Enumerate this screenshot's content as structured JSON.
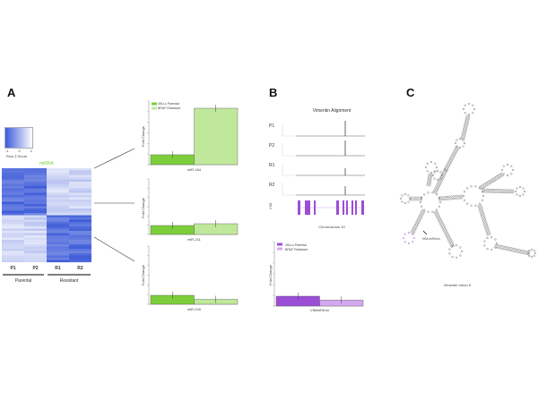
{
  "panels": {
    "a": {
      "letter": "A",
      "heatmap_title": "miRNA",
      "colorbar_label": "Row Z-Score",
      "colorbar_ticks": [
        "-1",
        "0",
        "1"
      ],
      "columns": [
        "P1",
        "P2",
        "R1",
        "R2"
      ],
      "groups": [
        "Parental",
        "Resistant"
      ]
    },
    "b": {
      "letter": "B",
      "alignment_title": "Vimentin Alignment",
      "tracks": [
        "P1",
        "P2",
        "R1",
        "R2"
      ],
      "gene_label": "VIM",
      "xlabel": "Chromosome 10"
    },
    "c": {
      "letter": "C",
      "title": "Vimentin Intron 6",
      "annotation": "VIM-miRtron"
    }
  },
  "colors": {
    "heat_high": "#3d5bd9",
    "heat_low": "#eef0fb",
    "green_dark": "#7ccf3a",
    "green_light": "#bfe89a",
    "purple_dark": "#9b4fd6",
    "purple_light": "#d4a8ef",
    "mirna_label": "#7ccf3a"
  },
  "chart_data": [
    {
      "type": "bar",
      "categories": [
        "miR-184"
      ],
      "ylabel": "Fold Change",
      "legend": "top-left",
      "series": [
        {
          "name": "451Lu Parental",
          "values": [
            1.0
          ]
        },
        {
          "name": "BRAF Resistant",
          "values": [
            5.7
          ]
        }
      ],
      "ylim": [
        0,
        6.5
      ]
    },
    {
      "type": "bar",
      "categories": [
        "miR-211"
      ],
      "ylabel": "Fold Change",
      "series": [
        {
          "values": [
            1.0
          ]
        },
        {
          "values": [
            1.2
          ]
        }
      ],
      "ylim": [
        0,
        6.5
      ]
    },
    {
      "type": "bar",
      "categories": [
        "miR-100"
      ],
      "ylabel": "Fold Change",
      "series": [
        {
          "values": [
            1.0
          ]
        },
        {
          "values": [
            0.55
          ]
        }
      ],
      "ylim": [
        0,
        6.5
      ]
    },
    {
      "type": "bar",
      "categories": [
        "VIMmiRtron"
      ],
      "ylabel": "Fold Change",
      "legend": "top-left",
      "series": [
        {
          "name": "451Lu Parental",
          "values": [
            1.0
          ]
        },
        {
          "name": "BRAF Resistant",
          "values": [
            0.6
          ]
        }
      ],
      "ylim": [
        0,
        6.5
      ]
    }
  ]
}
